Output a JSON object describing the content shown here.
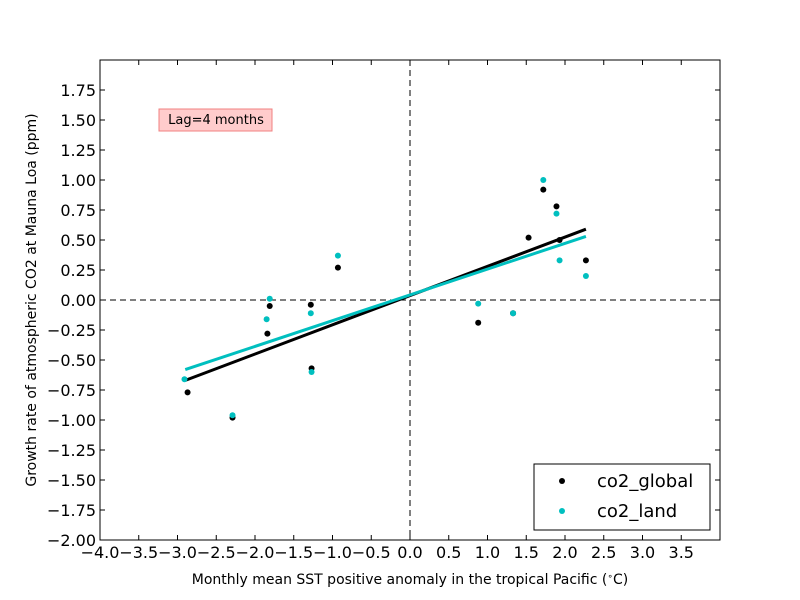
{
  "chart_data": {
    "type": "scatter",
    "xlabel": "Monthly mean SST positive anomaly in the tropical Pacific ($^\\circ$C)",
    "ylabel": "Growth rate of atmospheric CO2 at Mauna Loa (ppm)",
    "xlim": [
      -4.0,
      4.0
    ],
    "ylim": [
      -2.0,
      2.0
    ],
    "x_ticks": [
      -4.0,
      -3.5,
      -3.0,
      -2.5,
      -2.0,
      -1.5,
      -1.0,
      -0.5,
      0.0,
      0.5,
      1.0,
      1.5,
      2.0,
      2.5,
      3.0,
      3.5
    ],
    "x_tick_labels": [
      "−4.0",
      "−3.5",
      "−3.0",
      "−2.5",
      "−2.0",
      "−1.5",
      "−1.0",
      "−0.5",
      "0.0",
      "0.5",
      "1.0",
      "1.5",
      "2.0",
      "2.5",
      "3.0",
      "3.5"
    ],
    "y_ticks": [
      -2.0,
      -1.75,
      -1.5,
      -1.25,
      -1.0,
      -0.75,
      -0.5,
      -0.25,
      0.0,
      0.25,
      0.5,
      0.75,
      1.0,
      1.25,
      1.5,
      1.75
    ],
    "y_tick_labels": [
      "−2.00",
      "−1.75",
      "−1.50",
      "−1.25",
      "−1.00",
      "−0.75",
      "−0.50",
      "−0.25",
      "0.00",
      "0.25",
      "0.50",
      "0.75",
      "1.00",
      "1.25",
      "1.50",
      "1.75"
    ],
    "reference_lines": {
      "x": 0,
      "y": 0,
      "style": "dashed"
    },
    "annotation": {
      "text": "Lag=4 months",
      "background": "#ffcccc",
      "border": "#f08080"
    },
    "legend": {
      "location": "lower right"
    },
    "series": [
      {
        "name": "co2_global",
        "color": "#000000",
        "points": [
          [
            -2.87,
            -0.77
          ],
          [
            -2.29,
            -0.98
          ],
          [
            -1.84,
            -0.28
          ],
          [
            -1.81,
            -0.05
          ],
          [
            -1.28,
            -0.04
          ],
          [
            -1.27,
            -0.57
          ],
          [
            -0.93,
            0.27
          ],
          [
            0.88,
            -0.19
          ],
          [
            1.33,
            -0.11
          ],
          [
            1.53,
            0.52
          ],
          [
            1.72,
            0.92
          ],
          [
            1.89,
            0.78
          ],
          [
            1.93,
            0.5
          ],
          [
            2.27,
            0.33
          ]
        ],
        "fit": {
          "x": [
            -2.9,
            2.27
          ],
          "y": [
            -0.67,
            0.59
          ]
        }
      },
      {
        "name": "co2_land",
        "color": "#00bfbf",
        "points": [
          [
            -2.91,
            -0.66
          ],
          [
            -2.29,
            -0.96
          ],
          [
            -1.85,
            -0.16
          ],
          [
            -1.81,
            0.01
          ],
          [
            -1.28,
            -0.11
          ],
          [
            -1.27,
            -0.6
          ],
          [
            -0.93,
            0.37
          ],
          [
            0.88,
            -0.03
          ],
          [
            1.33,
            -0.11
          ],
          [
            1.72,
            1.0
          ],
          [
            1.89,
            0.72
          ],
          [
            1.93,
            0.33
          ],
          [
            2.27,
            0.2
          ]
        ],
        "fit": {
          "x": [
            -2.9,
            2.27
          ],
          "y": [
            -0.58,
            0.53
          ]
        }
      }
    ]
  }
}
